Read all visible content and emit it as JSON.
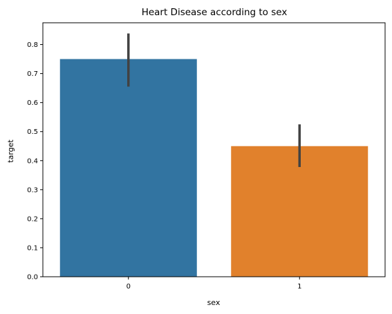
{
  "chart_data": {
    "type": "bar",
    "title": "Heart Disease according to sex",
    "xlabel": "sex",
    "ylabel": "target",
    "categories": [
      "0",
      "1"
    ],
    "values": [
      0.75,
      0.45
    ],
    "error_bars": [
      {
        "low": 0.655,
        "high": 0.838
      },
      {
        "low": 0.378,
        "high": 0.525
      }
    ],
    "colors": [
      "#3274a1",
      "#e1812c"
    ],
    "error_color": "#424242",
    "ylim": [
      0,
      0.875
    ],
    "yticks": [
      0.0,
      0.1,
      0.2,
      0.3,
      0.4,
      0.5,
      0.6,
      0.7,
      0.8
    ],
    "grid": false,
    "legend": "none"
  }
}
